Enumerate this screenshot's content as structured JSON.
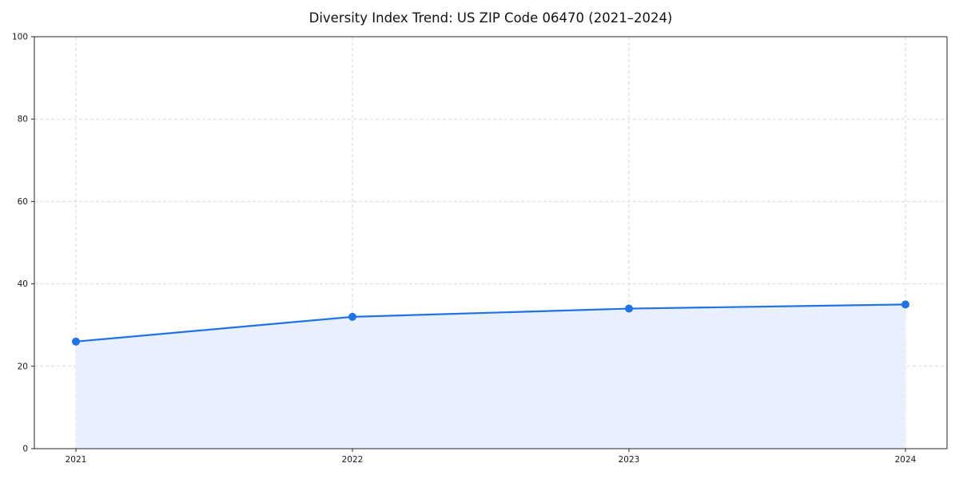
{
  "chart_data": {
    "type": "line",
    "title": "Diversity Index Trend: US ZIP Code 06470 (2021–2024)",
    "x": [
      "2021",
      "2022",
      "2023",
      "2024"
    ],
    "series": [
      {
        "name": "Diversity Index",
        "values": [
          26,
          32,
          34,
          35
        ]
      }
    ],
    "ylim": [
      0,
      100
    ],
    "yticks": [
      0,
      20,
      40,
      60,
      80,
      100
    ],
    "grid": "on",
    "grid_style": "dashed",
    "legend": "none",
    "xlabel": "",
    "ylabel": "",
    "colors": {
      "line": "#2172e5",
      "marker": "#2172e5",
      "fill": "#e7f0fc",
      "grid": "#d8d8d8",
      "axis": "#262626",
      "text": "#1a1a1a",
      "background": "#ffffff"
    }
  }
}
